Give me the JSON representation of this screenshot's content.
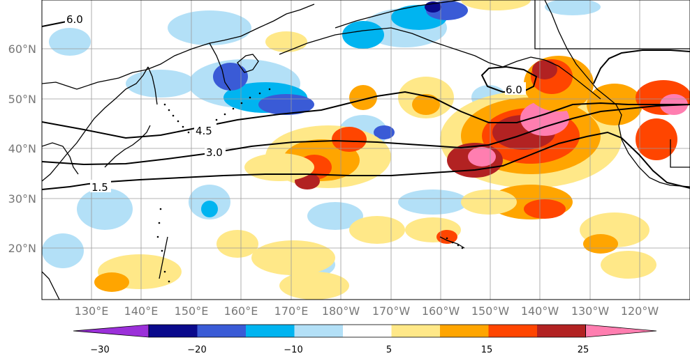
{
  "map": {
    "lat_labels": [
      "20°N",
      "30°N",
      "40°N",
      "50°N",
      "60°N"
    ],
    "lon_labels": [
      "130°E",
      "140°E",
      "150°E",
      "160°E",
      "170°E",
      "180°W",
      "170°W",
      "160°W",
      "150°W",
      "140°W",
      "130°W",
      "120°W"
    ],
    "contour_labels": [
      "6.0",
      "6.0",
      "4.5",
      "3.0",
      "1.5"
    ],
    "extent": {
      "lon_west": 122,
      "lon_east": 253,
      "lat_south": 10,
      "lat_north": 70
    }
  },
  "colorbar": {
    "tick_labels": [
      "−30",
      "−20",
      "−10",
      "5",
      "15",
      "25"
    ],
    "colors": [
      "#9b30d9",
      "#0a0a8c",
      "#3a5bd6",
      "#00b4f0",
      "#b3e0f7",
      "#ffffff",
      "#ffe888",
      "#ffa500",
      "#ff4500",
      "#b22222",
      "#ff7eb0"
    ]
  },
  "chart_data": {
    "type": "heatmap",
    "title": "",
    "contour_values": [
      1.5,
      3.0,
      4.5,
      6.0
    ],
    "colorbar_ticks": [
      -30,
      -20,
      -10,
      5,
      15,
      25
    ],
    "xlabel": "",
    "ylabel": ""
  }
}
